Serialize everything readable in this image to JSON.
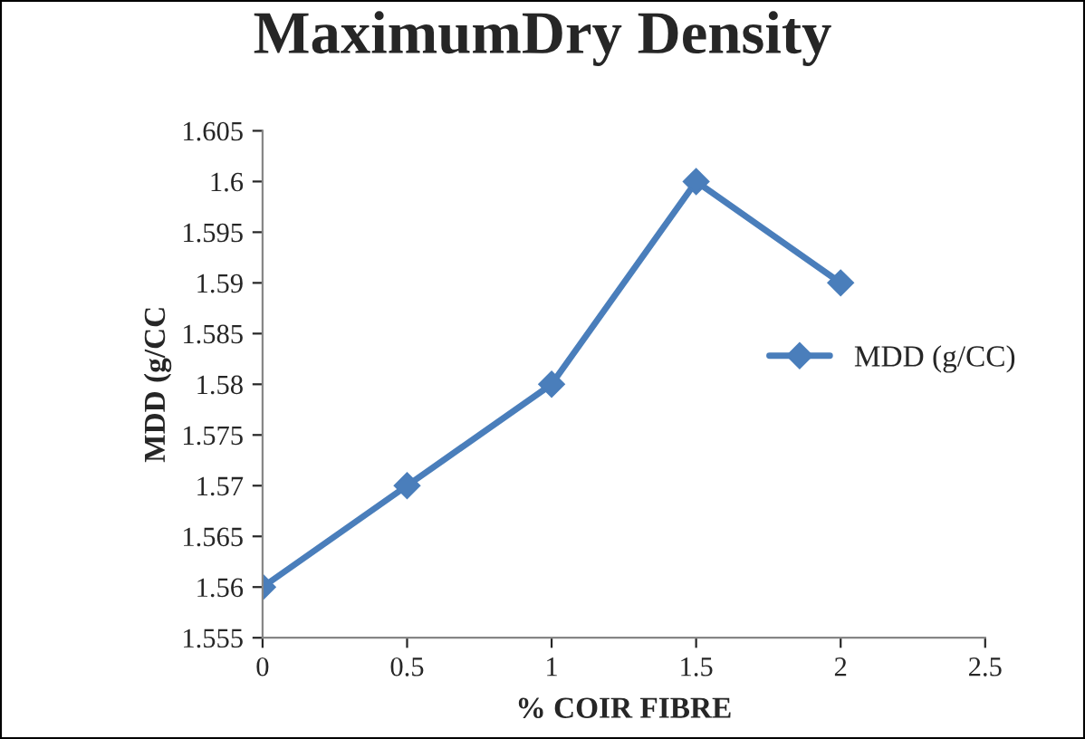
{
  "chart_data": {
    "type": "line",
    "title": "MaximumDry Density",
    "xlabel": "% COIR FIBRE",
    "ylabel": "MDD (g/CC",
    "x": [
      0,
      0.5,
      1,
      1.5,
      2
    ],
    "series": [
      {
        "name": "MDD (g/CC)",
        "color": "#4a7ebb",
        "values": [
          1.56,
          1.57,
          1.58,
          1.6,
          1.59
        ]
      }
    ],
    "xlim": [
      0,
      2.5
    ],
    "xticks": [
      0,
      0.5,
      1,
      1.5,
      2,
      2.5
    ],
    "ylim": [
      1.555,
      1.605
    ],
    "yticks": [
      1.555,
      1.56,
      1.565,
      1.57,
      1.575,
      1.58,
      1.585,
      1.59,
      1.595,
      1.6,
      1.605
    ],
    "grid": false,
    "legend": "right",
    "marker": "diamond",
    "line_style": "solid"
  }
}
